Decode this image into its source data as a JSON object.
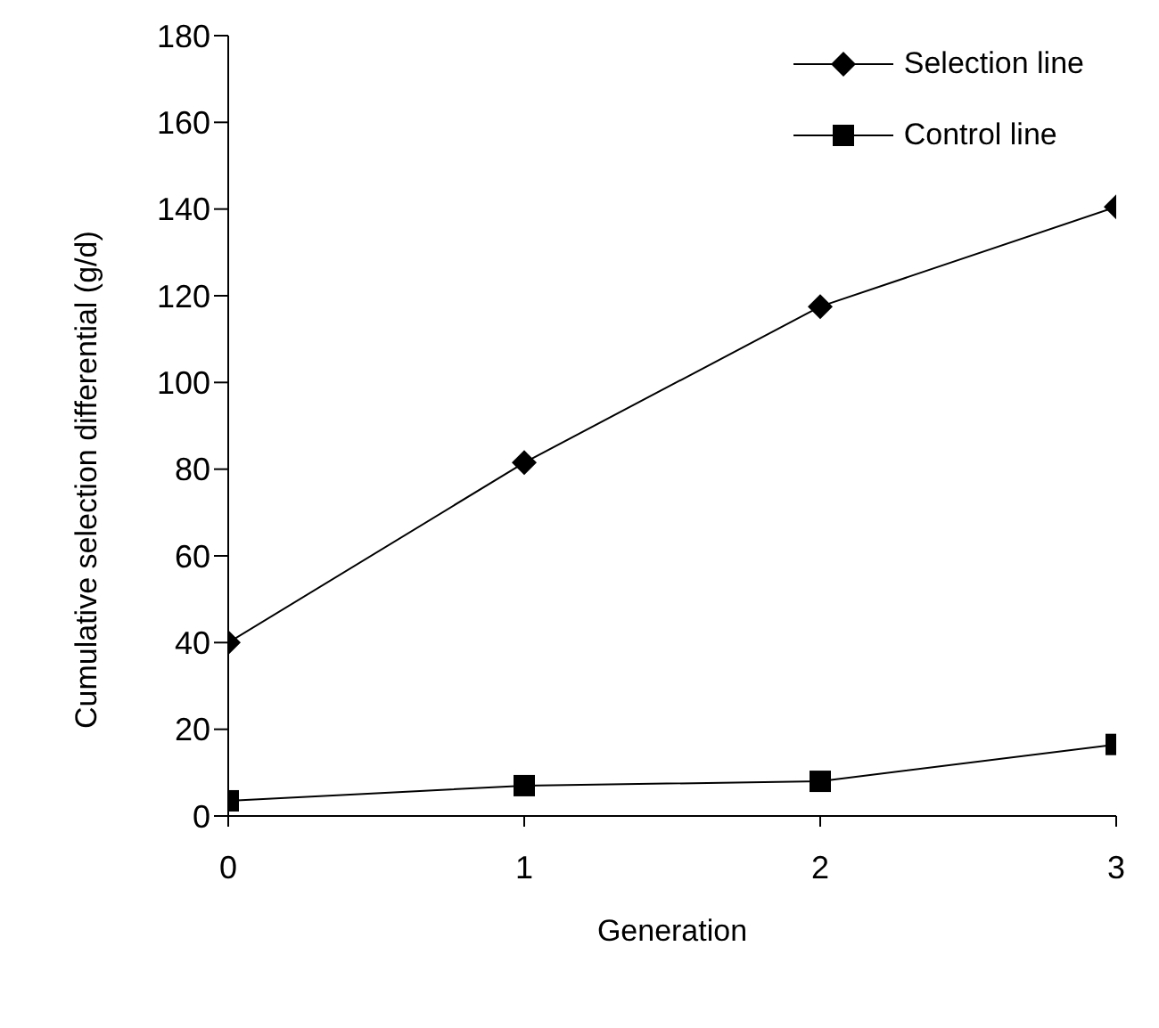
{
  "chart_data": {
    "type": "line",
    "xlabel": "Generation",
    "ylabel": "Cumulative selection differential (g/d)",
    "x": [
      0,
      1,
      2,
      3
    ],
    "series": [
      {
        "name": "Selection line",
        "color": "#000000",
        "values": [
          40,
          81.5,
          117.5,
          140.5
        ],
        "marker": "diamond"
      },
      {
        "name": "Control line",
        "color": "#000000",
        "values": [
          3.5,
          7,
          8,
          16.5
        ],
        "marker": "square"
      }
    ],
    "xlim": [
      0,
      3
    ],
    "xticks": [
      0,
      1,
      2,
      3
    ],
    "ylim": [
      0,
      180
    ],
    "yticks": [
      0,
      20,
      40,
      60,
      80,
      100,
      120,
      140,
      160,
      180
    ],
    "grid": false,
    "legend": "top right",
    "line_style": "solid"
  }
}
